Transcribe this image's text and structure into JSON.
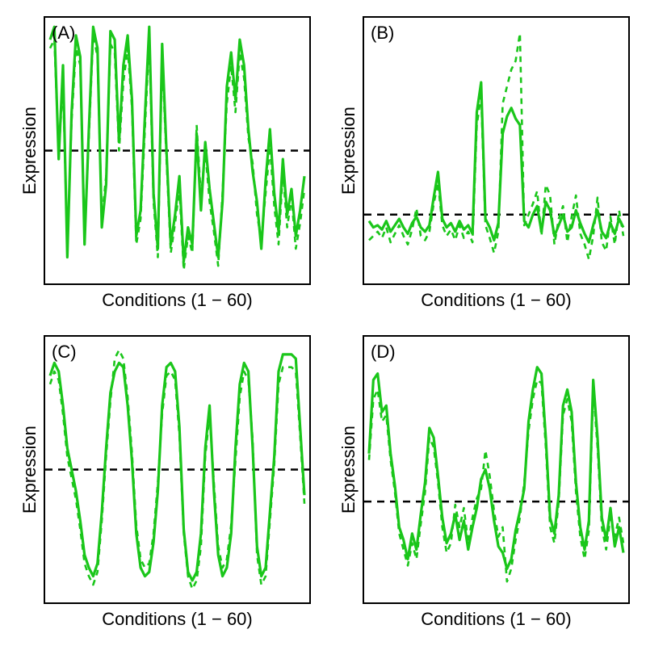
{
  "layout": {
    "rows": 2,
    "cols": 2,
    "panel_spacing": 30,
    "background_color": "#ffffff",
    "border_color": "#000000",
    "border_width": 2
  },
  "style": {
    "series_color": "#1ac61a",
    "series_solid_width": 3.2,
    "series_dashed_width": 2.6,
    "series_dash_pattern": "7 6",
    "refline_color": "#000000",
    "refline_width": 2.6,
    "refline_dash_pattern": "9 7",
    "label_font_size": 22,
    "tag_font_size": 22,
    "label_color": "#000000"
  },
  "axes": {
    "xlim": [
      1,
      60
    ],
    "xlabel": "Conditions (1 − 60)",
    "ylabel": "Expression",
    "ticks": "none",
    "grid": false
  },
  "panels": [
    {
      "id": "A",
      "tag": "(A)",
      "ylim": [
        -3,
        3
      ],
      "ref_y": 0,
      "series_solid": [
        2.6,
        2.9,
        -0.2,
        2.0,
        -2.5,
        0.9,
        2.7,
        2.2,
        -2.2,
        0.5,
        2.9,
        2.4,
        -1.8,
        -0.8,
        2.8,
        2.6,
        0.2,
        2.0,
        2.7,
        1.2,
        -2.0,
        -1.4,
        0.8,
        2.9,
        -1.0,
        -2.3,
        2.5,
        0.0,
        -2.2,
        -1.5,
        -0.6,
        -2.6,
        -1.8,
        -2.2,
        0.4,
        -1.4,
        0.2,
        -0.9,
        -1.7,
        -2.5,
        -1.2,
        1.5,
        2.3,
        1.2,
        2.6,
        2.0,
        0.5,
        -0.5,
        -1.2,
        -2.3,
        -0.7,
        0.5,
        -1.0,
        -1.9,
        -0.2,
        -1.5,
        -0.9,
        -2.0,
        -1.4,
        -0.6
      ],
      "series_dashed": [
        2.4,
        2.6,
        -0.1,
        1.6,
        -2.3,
        0.7,
        2.4,
        2.0,
        -2.0,
        0.3,
        2.7,
        2.2,
        -1.6,
        -0.6,
        2.5,
        2.3,
        0.0,
        1.6,
        2.4,
        1.0,
        -2.2,
        -1.6,
        0.5,
        2.6,
        -1.2,
        -2.5,
        2.2,
        -0.2,
        -2.4,
        -1.7,
        -0.9,
        -2.8,
        -2.0,
        -2.4,
        0.6,
        -1.1,
        0.0,
        -1.2,
        -1.9,
        -2.7,
        -1.0,
        1.1,
        2.0,
        0.9,
        2.3,
        1.7,
        0.3,
        -0.3,
        -1.5,
        -2.1,
        -1.0,
        0.1,
        -1.3,
        -2.2,
        -0.5,
        -1.8,
        -1.1,
        -2.3,
        -1.7,
        -0.9
      ]
    },
    {
      "id": "B",
      "tag": "(B)",
      "ylim": [
        -3,
        9
      ],
      "ref_y": 0,
      "series_solid": [
        -0.3,
        -0.6,
        -0.5,
        -0.7,
        -0.3,
        -0.8,
        -0.5,
        -0.2,
        -0.6,
        -0.9,
        -0.4,
        -0.1,
        -0.6,
        -0.8,
        -0.5,
        0.8,
        2.0,
        -0.2,
        -0.6,
        -0.4,
        -0.8,
        -0.3,
        -0.7,
        -0.5,
        -0.9,
        4.8,
        6.2,
        -0.2,
        -0.6,
        -1.2,
        -0.4,
        3.8,
        4.6,
        5.0,
        4.5,
        4.2,
        -0.3,
        -0.6,
        0.0,
        0.4,
        -0.8,
        0.6,
        0.2,
        -1.0,
        -0.5,
        0.0,
        -0.8,
        -0.6,
        0.2,
        -0.4,
        -0.9,
        -1.3,
        -0.5,
        0.2,
        -0.8,
        -1.1,
        -0.4,
        -0.9,
        -0.2,
        -0.6
      ],
      "series_dashed": [
        -1.2,
        -1.0,
        -0.8,
        -1.1,
        -0.6,
        -1.3,
        -0.9,
        -0.5,
        -1.0,
        -1.4,
        -0.7,
        0.3,
        -1.0,
        -1.2,
        -0.8,
        0.5,
        1.5,
        -0.5,
        -1.0,
        -0.7,
        -1.2,
        -0.5,
        -1.1,
        -0.8,
        -1.3,
        4.2,
        5.6,
        -0.5,
        -1.1,
        -1.8,
        -0.8,
        5.2,
        6.0,
        6.8,
        7.2,
        8.5,
        -0.5,
        0.0,
        0.5,
        1.1,
        -1.0,
        1.4,
        0.9,
        -1.4,
        -0.2,
        0.4,
        -1.3,
        -0.1,
        0.9,
        -0.9,
        -1.4,
        -2.1,
        -1.0,
        0.8,
        -1.3,
        -1.7,
        -0.1,
        -1.4,
        0.2,
        -1.0
      ]
    },
    {
      "id": "C",
      "tag": "(C)",
      "ylim": [
        -3,
        3
      ],
      "ref_y": 0,
      "series_solid": [
        2.2,
        2.5,
        2.3,
        1.5,
        0.5,
        0.0,
        -0.5,
        -1.2,
        -2.0,
        -2.3,
        -2.5,
        -2.2,
        -1.0,
        0.5,
        1.8,
        2.3,
        2.5,
        2.4,
        1.5,
        0.2,
        -1.5,
        -2.3,
        -2.5,
        -2.4,
        -1.7,
        -0.5,
        1.5,
        2.4,
        2.5,
        2.3,
        1.0,
        -1.4,
        -2.4,
        -2.6,
        -2.4,
        -1.5,
        0.5,
        1.5,
        -0.5,
        -2.0,
        -2.5,
        -2.3,
        -1.5,
        0.5,
        2.0,
        2.5,
        2.3,
        0.5,
        -1.8,
        -2.5,
        -2.3,
        -1.0,
        0.3,
        2.3,
        2.7,
        2.7,
        2.7,
        2.6,
        1.0,
        -0.6
      ],
      "series_dashed": [
        2.0,
        2.3,
        2.1,
        1.3,
        0.3,
        -0.2,
        -0.7,
        -1.4,
        -2.2,
        -2.5,
        -2.7,
        -2.4,
        -1.2,
        0.3,
        1.6,
        2.6,
        2.8,
        2.6,
        1.7,
        0.4,
        -1.3,
        -2.1,
        -2.3,
        -2.2,
        -1.5,
        -0.3,
        1.3,
        2.2,
        2.3,
        2.1,
        0.8,
        -1.5,
        -2.5,
        -2.8,
        -2.6,
        -1.8,
        0.3,
        1.3,
        -0.3,
        -1.8,
        -2.3,
        -2.1,
        -1.3,
        0.2,
        1.7,
        2.3,
        2.1,
        0.7,
        -2.0,
        -2.7,
        -2.5,
        -1.2,
        0.1,
        2.0,
        2.4,
        2.4,
        2.4,
        2.3,
        0.8,
        -0.8
      ]
    },
    {
      "id": "D",
      "tag": "(D)",
      "ylim": [
        -3,
        5
      ],
      "ref_y": 0,
      "series_solid": [
        1.5,
        3.8,
        4.0,
        2.8,
        3.0,
        1.5,
        0.5,
        -0.8,
        -1.2,
        -1.8,
        -1.0,
        -1.5,
        -0.4,
        0.6,
        2.3,
        2.0,
        0.8,
        -0.5,
        -1.3,
        -1.0,
        -0.4,
        -1.2,
        -0.6,
        -1.5,
        -0.8,
        -0.2,
        0.7,
        1.0,
        0.4,
        -0.6,
        -1.4,
        -1.6,
        -2.1,
        -1.8,
        -0.9,
        -0.3,
        0.4,
        2.5,
        3.5,
        4.2,
        4.0,
        2.0,
        -0.5,
        -1.0,
        0.2,
        3.0,
        3.5,
        2.8,
        0.6,
        -0.8,
        -1.5,
        -0.6,
        3.8,
        2.0,
        -0.5,
        -1.2,
        -0.2,
        -1.4,
        -0.8,
        -1.6
      ],
      "series_dashed": [
        1.3,
        3.2,
        3.5,
        2.5,
        2.7,
        1.3,
        0.3,
        -1.0,
        -1.5,
        -2.0,
        -1.3,
        -1.8,
        -0.7,
        0.3,
        2.0,
        1.7,
        0.6,
        -0.8,
        -1.6,
        -1.3,
        -0.1,
        -0.8,
        -0.2,
        -1.3,
        -0.5,
        0.1,
        0.4,
        1.6,
        0.8,
        -0.3,
        -1.1,
        -0.8,
        -2.5,
        -2.1,
        -1.2,
        -0.5,
        0.6,
        2.2,
        3.2,
        3.8,
        3.7,
        1.7,
        -0.8,
        -1.3,
        0.0,
        2.7,
        3.2,
        2.5,
        0.3,
        -1.1,
        -1.8,
        -0.9,
        3.5,
        1.7,
        -0.8,
        -1.5,
        -0.5,
        -1.1,
        -0.5,
        -1.3
      ]
    }
  ]
}
